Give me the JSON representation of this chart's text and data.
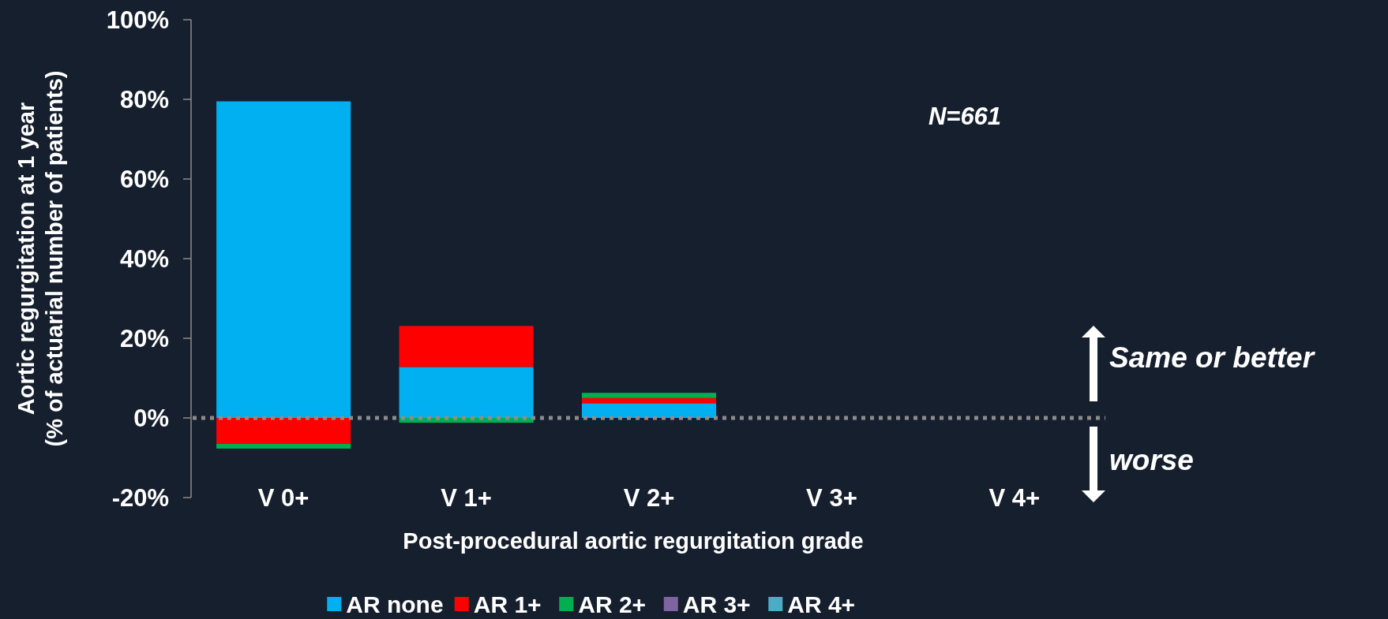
{
  "chart_data": {
    "type": "bar",
    "stacked": true,
    "xlabel": "Post-procedural aortic regurgitation grade",
    "ylabel": "Aortic regurgitation at 1 year\n(% of actuarial number of patients)",
    "categories": [
      "V 0+",
      "V 1+",
      "V 2+",
      "V 3+",
      "V 4+"
    ],
    "series": [
      {
        "name": "AR none",
        "color": "#00b0f0",
        "values": [
          79.5,
          12.8,
          3.7,
          0,
          0
        ]
      },
      {
        "name": "AR 1+",
        "color": "#ff0000",
        "values": [
          -6.5,
          10.3,
          1.3,
          0,
          0
        ]
      },
      {
        "name": "AR 2+",
        "color": "#00b050",
        "values": [
          -1.2,
          -1.2,
          1.3,
          0,
          0
        ]
      },
      {
        "name": "AR 3+",
        "color": "#8064a2",
        "values": [
          0,
          0,
          0,
          0,
          0
        ]
      },
      {
        "name": "AR 4+",
        "color": "#4bacc6",
        "values": [
          0,
          0,
          0,
          0,
          0
        ]
      }
    ],
    "ylim": [
      -20,
      100
    ],
    "yticks": [
      {
        "value": -20,
        "label": "-20%"
      },
      {
        "value": 0,
        "label": "0%"
      },
      {
        "value": 20,
        "label": "20%"
      },
      {
        "value": 40,
        "label": "40%"
      },
      {
        "value": 60,
        "label": "60%"
      },
      {
        "value": 80,
        "label": "80%"
      },
      {
        "value": 100,
        "label": "100%"
      }
    ],
    "ref_lines": [
      {
        "axis": "y",
        "value": 0,
        "color": "#8c8c8c",
        "line_style": "dotted"
      }
    ],
    "annotations": [
      "N=661",
      "Same or better",
      "worse"
    ],
    "legend": "bottom",
    "grid": false
  }
}
